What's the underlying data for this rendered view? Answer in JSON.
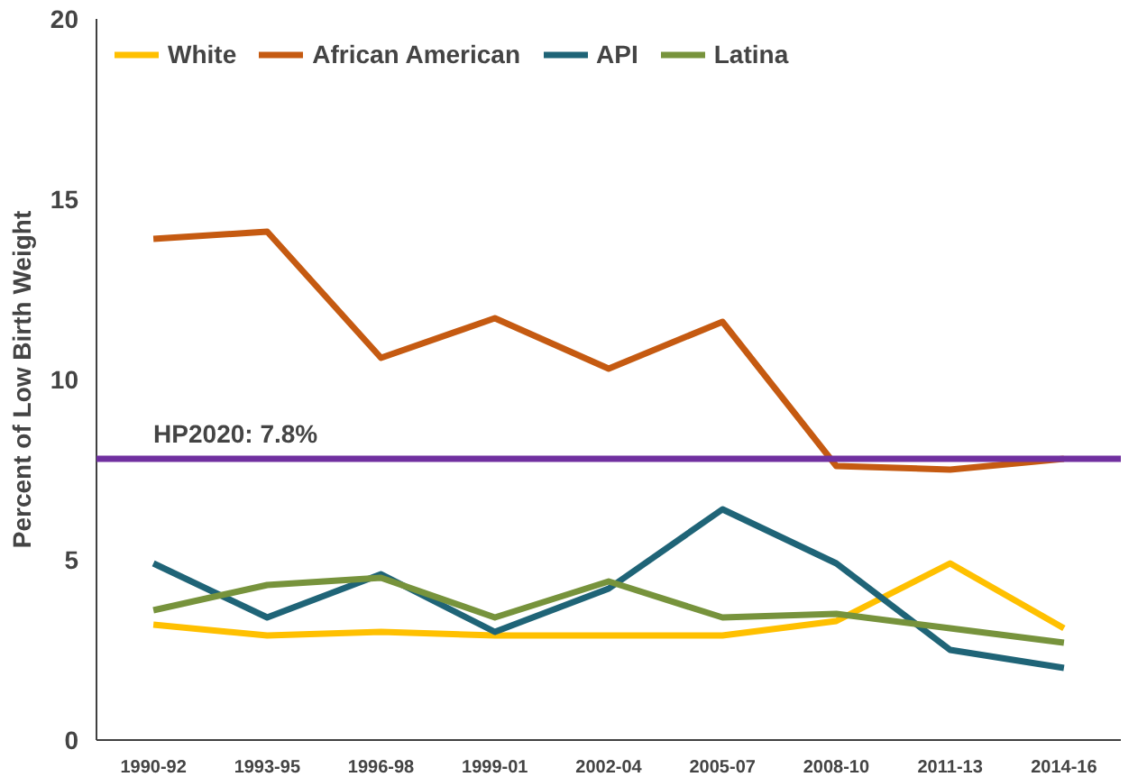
{
  "chart_data": {
    "type": "line",
    "ylabel": "Percent of Low Birth Weight",
    "categories": [
      "1990-92",
      "1993-95",
      "1996-98",
      "1999-01",
      "2002-04",
      "2005-07",
      "2008-10",
      "2011-13",
      "2014-16"
    ],
    "series": [
      {
        "name": "White",
        "color": "#ffc000",
        "values": [
          3.2,
          2.9,
          3.0,
          2.9,
          2.9,
          2.9,
          3.3,
          4.9,
          3.1
        ]
      },
      {
        "name": "African American",
        "color": "#c55a11",
        "values": [
          13.9,
          14.1,
          10.6,
          11.7,
          10.3,
          11.6,
          7.6,
          7.5,
          7.8
        ]
      },
      {
        "name": "API",
        "color": "#1f6477",
        "values": [
          4.9,
          3.4,
          4.6,
          3.0,
          4.2,
          6.4,
          4.9,
          2.5,
          2.0
        ]
      },
      {
        "name": "Latina",
        "color": "#77933c",
        "values": [
          3.6,
          4.3,
          4.5,
          3.4,
          4.4,
          3.4,
          3.5,
          3.1,
          2.7
        ]
      }
    ],
    "ylim": [
      0,
      20
    ],
    "yticks": [
      0,
      5,
      10,
      15,
      20
    ],
    "ref_lines": [
      {
        "axis": "y",
        "value": 7.8,
        "label": "HP2020: 7.8%",
        "color": "#7030a0"
      }
    ],
    "grid": false,
    "legend": "top left",
    "marker": "none",
    "line_style": "solid"
  }
}
